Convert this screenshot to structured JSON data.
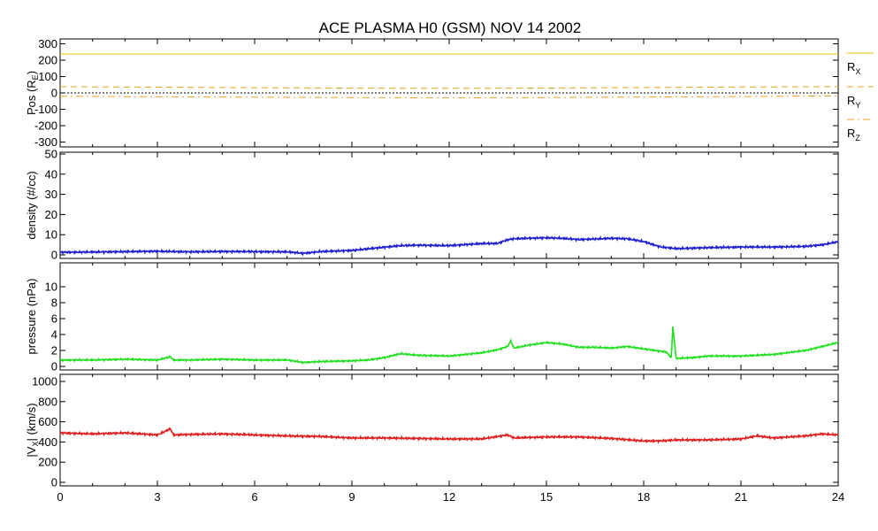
{
  "chart_data": [
    {
      "id": "pos",
      "type": "line",
      "title": "ACE PLASMA H0 (GSM)   NOV 14 2002",
      "ylabel": "Pos (R",
      "ylabel_sub": "E",
      "ylabel_end": ")",
      "ylim": [
        -330,
        330
      ],
      "yticks": [
        300,
        200,
        100,
        0,
        -100,
        -200,
        -300
      ],
      "xlim": [
        0,
        24
      ],
      "zero_line": true,
      "series": [
        {
          "name": "R",
          "sub": "X",
          "color": "#f0c000",
          "dash": "solid",
          "x": [
            0,
            6,
            12,
            18,
            24
          ],
          "y": [
            238,
            238,
            238,
            238,
            238
          ]
        },
        {
          "name": "R",
          "sub": "Y",
          "color": "#f0a020",
          "dash": "dash",
          "x": [
            0,
            3,
            6,
            9,
            12,
            15,
            18,
            21,
            24
          ],
          "y": [
            38,
            35,
            32,
            29,
            28,
            30,
            33,
            36,
            38
          ]
        },
        {
          "name": "R",
          "sub": "Z",
          "color": "#f0a020",
          "dash": "dashdot",
          "x": [
            0,
            3,
            6,
            9,
            12,
            15,
            18,
            21,
            24
          ],
          "y": [
            -20,
            -23,
            -26,
            -28,
            -29,
            -28,
            -25,
            -22,
            -18
          ]
        }
      ]
    },
    {
      "id": "density",
      "type": "line",
      "ylabel": "density (#/cc)",
      "ylim": [
        0,
        50
      ],
      "yticks": [
        50,
        40,
        30,
        20,
        10,
        0
      ],
      "xlim": [
        0,
        24
      ],
      "series": [
        {
          "color": "#2020d0",
          "x": [
            0,
            1,
            2,
            3,
            4,
            5,
            6,
            7,
            7.5,
            8,
            9,
            9.5,
            10,
            10.5,
            11,
            12,
            13,
            13.5,
            13.8,
            14,
            15,
            15.5,
            16,
            17,
            17.5,
            18,
            18.5,
            19,
            20,
            21,
            22,
            23,
            23.5,
            24
          ],
          "y": [
            1.3,
            1.4,
            1.6,
            1.8,
            1.5,
            1.7,
            1.6,
            1.5,
            0.8,
            1.6,
            2.2,
            3.0,
            3.8,
            4.6,
            4.8,
            4.6,
            5.6,
            5.7,
            7.5,
            8.0,
            8.5,
            8.2,
            7.6,
            8.2,
            8.0,
            6.6,
            4.0,
            3.1,
            3.6,
            3.9,
            3.9,
            4.2,
            5.0,
            6.5
          ]
        }
      ]
    },
    {
      "id": "pressure",
      "type": "line",
      "ylabel": "pressure (nPa)",
      "ylim": [
        0,
        10
      ],
      "yticks": [
        10,
        8,
        6,
        4,
        2,
        0
      ],
      "xlim": [
        0,
        24
      ],
      "series": [
        {
          "color": "#20e020",
          "x": [
            0,
            1,
            2,
            3,
            3.4,
            3.5,
            4,
            5,
            6,
            7,
            7.5,
            8,
            9,
            9.5,
            10,
            10.5,
            11,
            12,
            13,
            13.5,
            13.8,
            13.9,
            14,
            14.5,
            15,
            15.5,
            16,
            16.5,
            17,
            17.5,
            18,
            18.7,
            18.85,
            18.9,
            19.0,
            19.5,
            20,
            21,
            22,
            23,
            23.5,
            24
          ],
          "y": [
            0.8,
            0.8,
            0.9,
            0.8,
            1.2,
            0.8,
            0.8,
            0.9,
            0.8,
            0.8,
            0.5,
            0.6,
            0.7,
            0.8,
            1.1,
            1.6,
            1.4,
            1.3,
            1.7,
            2.1,
            2.5,
            3.2,
            2.3,
            2.7,
            3.0,
            2.8,
            2.4,
            2.4,
            2.3,
            2.5,
            2.2,
            1.8,
            1.1,
            5.0,
            1.0,
            1.1,
            1.3,
            1.3,
            1.5,
            2.0,
            2.5,
            3.0
          ]
        }
      ]
    },
    {
      "id": "vx",
      "type": "line",
      "ylabel": "|V",
      "ylabel_sub": "X",
      "ylabel_end": "| (km/s)",
      "ylim": [
        0,
        1000
      ],
      "yticks": [
        1000,
        800,
        600,
        400,
        200,
        0
      ],
      "xlim": [
        0,
        24
      ],
      "xticks": [
        0,
        3,
        6,
        9,
        12,
        15,
        18,
        21,
        24
      ],
      "series": [
        {
          "color": "#e02020",
          "x": [
            0,
            1,
            2,
            3,
            3.4,
            3.5,
            4,
            5,
            6,
            7,
            8,
            9,
            10,
            11,
            12,
            13,
            13.8,
            14,
            15,
            16,
            17,
            18,
            18.5,
            19,
            20,
            21,
            21.5,
            22,
            23,
            23.5,
            24
          ],
          "y": [
            490,
            480,
            490,
            470,
            530,
            470,
            475,
            480,
            470,
            460,
            455,
            440,
            440,
            435,
            430,
            430,
            470,
            440,
            450,
            450,
            435,
            410,
            410,
            420,
            420,
            430,
            460,
            440,
            460,
            480,
            470
          ]
        }
      ]
    }
  ]
}
